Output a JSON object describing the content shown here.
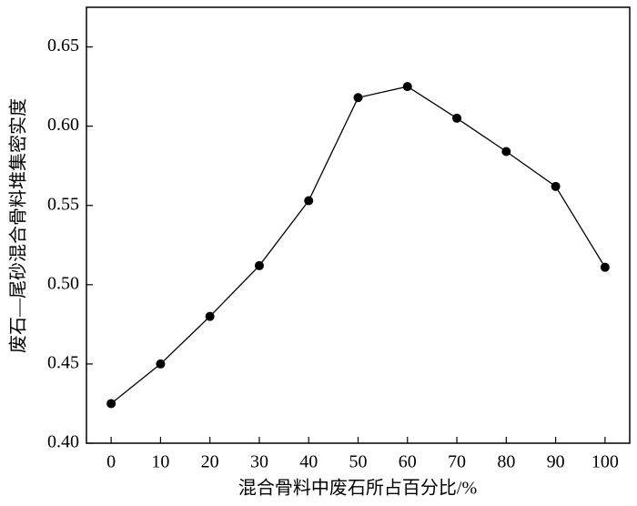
{
  "chart_data": {
    "type": "line",
    "x_label": "混合骨料中废石所占百分比/%",
    "y_label": "废石—尾砂混合骨料堆集密实度",
    "x": [
      0,
      10,
      20,
      30,
      40,
      50,
      60,
      70,
      80,
      90,
      100
    ],
    "series": [
      {
        "color": "#000000",
        "values": [
          0.425,
          0.45,
          0.48,
          0.512,
          0.553,
          0.618,
          0.625,
          0.605,
          0.584,
          0.562,
          0.511
        ]
      }
    ],
    "xlim": [
      -5,
      105
    ],
    "ylim": [
      0.4,
      0.675
    ],
    "xticks": [
      0,
      10,
      20,
      30,
      40,
      50,
      60,
      70,
      80,
      90,
      100
    ],
    "yticks": [
      {
        "value": 0.4,
        "label": "0.40"
      },
      0.45,
      {
        "value": 0.5,
        "label": "0.50"
      },
      0.55,
      {
        "value": 0.6,
        "label": "0.60"
      },
      0.65
    ],
    "grid": false,
    "marker": "circle"
  }
}
